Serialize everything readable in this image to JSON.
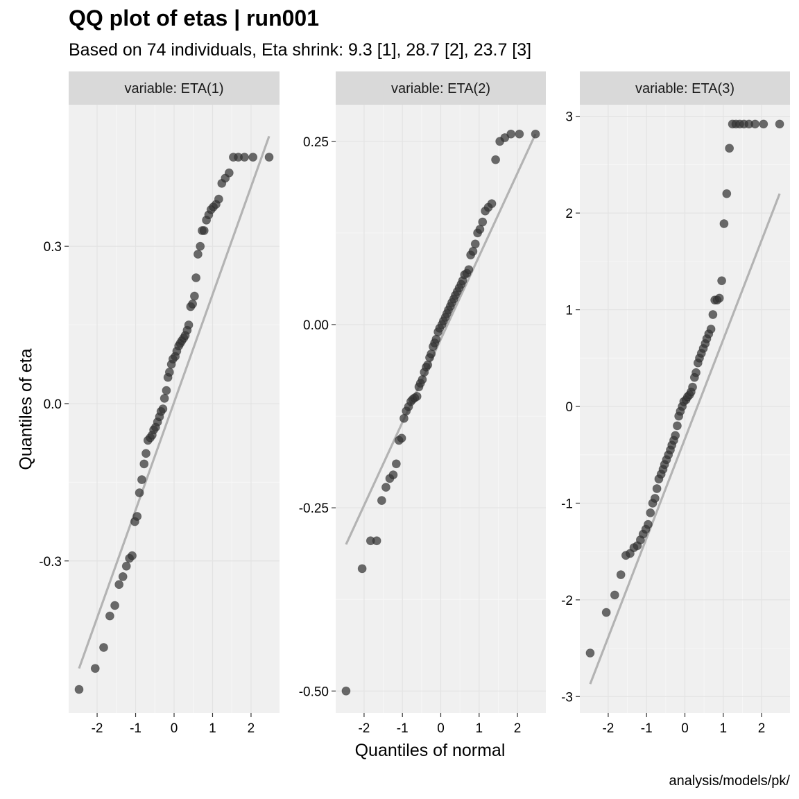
{
  "title": "QQ plot of etas | run001",
  "subtitle": "Based on 74 individuals, Eta shrink: 9.3 [1], 28.7 [2], 23.7 [3]",
  "caption": "analysis/models/pk/",
  "chart_data": {
    "type": "scatter",
    "xlabel": "Quantiles of normal",
    "ylabel": "Quantiles of eta",
    "panels": [
      {
        "strip": "variable: ETA(1)",
        "ylim": [
          -0.59,
          0.57
        ],
        "xlim": [
          -2.74,
          2.74
        ],
        "y_ticks": [
          "-0.3",
          "0.0",
          "0.3"
        ],
        "y_tick_values": [
          -0.3,
          0.0,
          0.3
        ],
        "x_ticks": [
          "-2",
          "-1",
          "0",
          "1",
          "2"
        ],
        "x_tick_values": [
          -2,
          -1,
          0,
          1,
          2
        ],
        "line": {
          "x": [
            -2.47,
            2.47
          ],
          "y": [
            -0.505,
            0.51
          ]
        },
        "x": [
          -2.47,
          -2.05,
          -1.83,
          -1.67,
          -1.54,
          -1.43,
          -1.33,
          -1.24,
          -1.16,
          -1.09,
          -1.02,
          -0.96,
          -0.9,
          -0.84,
          -0.78,
          -0.73,
          -0.68,
          -0.62,
          -0.57,
          -0.53,
          -0.48,
          -0.43,
          -0.38,
          -0.34,
          -0.29,
          -0.25,
          -0.2,
          -0.16,
          -0.12,
          -0.07,
          -0.03,
          0.03,
          0.07,
          0.12,
          0.16,
          0.2,
          0.25,
          0.29,
          0.34,
          0.38,
          0.43,
          0.48,
          0.53,
          0.57,
          0.62,
          0.68,
          0.73,
          0.78,
          0.84,
          0.9,
          0.96,
          1.02,
          1.09,
          1.16,
          1.24,
          1.33,
          1.43,
          1.54,
          1.67,
          1.83,
          2.05,
          2.47
        ],
        "y": [
          -0.545,
          -0.505,
          -0.465,
          -0.405,
          -0.385,
          -0.345,
          -0.33,
          -0.31,
          -0.295,
          -0.29,
          -0.225,
          -0.215,
          -0.17,
          -0.145,
          -0.115,
          -0.095,
          -0.07,
          -0.065,
          -0.06,
          -0.05,
          -0.045,
          -0.035,
          -0.025,
          -0.015,
          -0.01,
          0.01,
          0.025,
          0.05,
          0.06,
          0.075,
          0.085,
          0.09,
          0.1,
          0.11,
          0.115,
          0.12,
          0.125,
          0.13,
          0.14,
          0.15,
          0.185,
          0.19,
          0.205,
          0.24,
          0.285,
          0.3,
          0.33,
          0.33,
          0.35,
          0.36,
          0.37,
          0.375,
          0.38,
          0.39,
          0.42,
          0.43,
          0.44,
          0.47,
          0.47,
          0.47,
          0.47,
          0.47
        ]
      },
      {
        "strip": "variable: ETA(2)",
        "ylim": [
          -0.53,
          0.3
        ],
        "xlim": [
          -2.74,
          2.74
        ],
        "y_ticks": [
          "-0.50",
          "-0.25",
          "0.00",
          "0.25"
        ],
        "y_tick_values": [
          -0.5,
          -0.25,
          0.0,
          0.25
        ],
        "x_ticks": [
          "-2",
          "-1",
          "0",
          "1",
          "2"
        ],
        "x_tick_values": [
          -2,
          -1,
          0,
          1,
          2
        ],
        "line": {
          "x": [
            -2.47,
            2.47
          ],
          "y": [
            -0.3,
            0.26
          ]
        },
        "x": [
          -2.47,
          -2.05,
          -1.83,
          -1.67,
          -1.54,
          -1.43,
          -1.33,
          -1.24,
          -1.16,
          -1.09,
          -1.02,
          -0.96,
          -0.9,
          -0.84,
          -0.78,
          -0.73,
          -0.68,
          -0.62,
          -0.57,
          -0.53,
          -0.48,
          -0.43,
          -0.38,
          -0.34,
          -0.29,
          -0.25,
          -0.2,
          -0.16,
          -0.12,
          -0.07,
          -0.03,
          0.03,
          0.07,
          0.12,
          0.16,
          0.2,
          0.25,
          0.29,
          0.34,
          0.38,
          0.43,
          0.48,
          0.53,
          0.57,
          0.62,
          0.68,
          0.73,
          0.78,
          0.84,
          0.9,
          0.96,
          1.02,
          1.09,
          1.16,
          1.24,
          1.33,
          1.43,
          1.54,
          1.67,
          1.83,
          2.05,
          2.47
        ],
        "y": [
          -0.5,
          -0.333,
          -0.295,
          -0.295,
          -0.24,
          -0.222,
          -0.21,
          -0.205,
          -0.19,
          -0.158,
          -0.155,
          -0.128,
          -0.118,
          -0.112,
          -0.105,
          -0.102,
          -0.1,
          -0.098,
          -0.085,
          -0.08,
          -0.075,
          -0.065,
          -0.058,
          -0.055,
          -0.045,
          -0.04,
          -0.03,
          -0.025,
          -0.02,
          -0.01,
          -0.005,
          0.0,
          0.005,
          0.01,
          0.015,
          0.02,
          0.025,
          0.03,
          0.035,
          0.04,
          0.045,
          0.05,
          0.055,
          0.06,
          0.068,
          0.07,
          0.075,
          0.095,
          0.1,
          0.11,
          0.125,
          0.13,
          0.14,
          0.155,
          0.16,
          0.165,
          0.225,
          0.25,
          0.255,
          0.26,
          0.26,
          0.26
        ]
      },
      {
        "strip": "variable: ETA(3)",
        "ylim": [
          -3.17,
          3.12
        ],
        "xlim": [
          -2.74,
          2.74
        ],
        "y_ticks": [
          "-3",
          "-2",
          "-1",
          "0",
          "1",
          "2",
          "3"
        ],
        "y_tick_values": [
          -3,
          -2,
          -1,
          0,
          1,
          2,
          3
        ],
        "x_ticks": [
          "-2",
          "-1",
          "0",
          "1",
          "2"
        ],
        "x_tick_values": [
          -2,
          -1,
          0,
          1,
          2
        ],
        "line": {
          "x": [
            -2.47,
            2.47
          ],
          "y": [
            -2.87,
            2.2
          ]
        },
        "x": [
          -2.47,
          -2.05,
          -1.83,
          -1.67,
          -1.54,
          -1.43,
          -1.33,
          -1.24,
          -1.16,
          -1.09,
          -1.02,
          -0.96,
          -0.9,
          -0.84,
          -0.78,
          -0.73,
          -0.68,
          -0.62,
          -0.57,
          -0.53,
          -0.48,
          -0.43,
          -0.38,
          -0.34,
          -0.29,
          -0.25,
          -0.2,
          -0.16,
          -0.12,
          -0.07,
          -0.03,
          0.03,
          0.07,
          0.12,
          0.16,
          0.2,
          0.25,
          0.29,
          0.34,
          0.38,
          0.43,
          0.48,
          0.53,
          0.57,
          0.62,
          0.68,
          0.73,
          0.78,
          0.84,
          0.9,
          0.96,
          1.02,
          1.09,
          1.16,
          1.24,
          1.33,
          1.43,
          1.54,
          1.67,
          1.83,
          2.05,
          2.47
        ],
        "y": [
          -2.55,
          -2.13,
          -1.95,
          -1.74,
          -1.54,
          -1.52,
          -1.46,
          -1.44,
          -1.38,
          -1.32,
          -1.27,
          -1.22,
          -1.1,
          -1.0,
          -0.95,
          -0.85,
          -0.75,
          -0.7,
          -0.65,
          -0.6,
          -0.55,
          -0.5,
          -0.45,
          -0.4,
          -0.35,
          -0.3,
          -0.2,
          -0.1,
          -0.05,
          0.0,
          0.05,
          0.07,
          0.1,
          0.12,
          0.15,
          0.2,
          0.3,
          0.35,
          0.45,
          0.5,
          0.55,
          0.6,
          0.65,
          0.7,
          0.75,
          0.8,
          0.95,
          1.1,
          1.1,
          1.12,
          1.3,
          1.89,
          2.2,
          2.67,
          2.92,
          2.92,
          2.92,
          2.92,
          2.92,
          2.92,
          2.92,
          2.92
        ]
      }
    ]
  }
}
